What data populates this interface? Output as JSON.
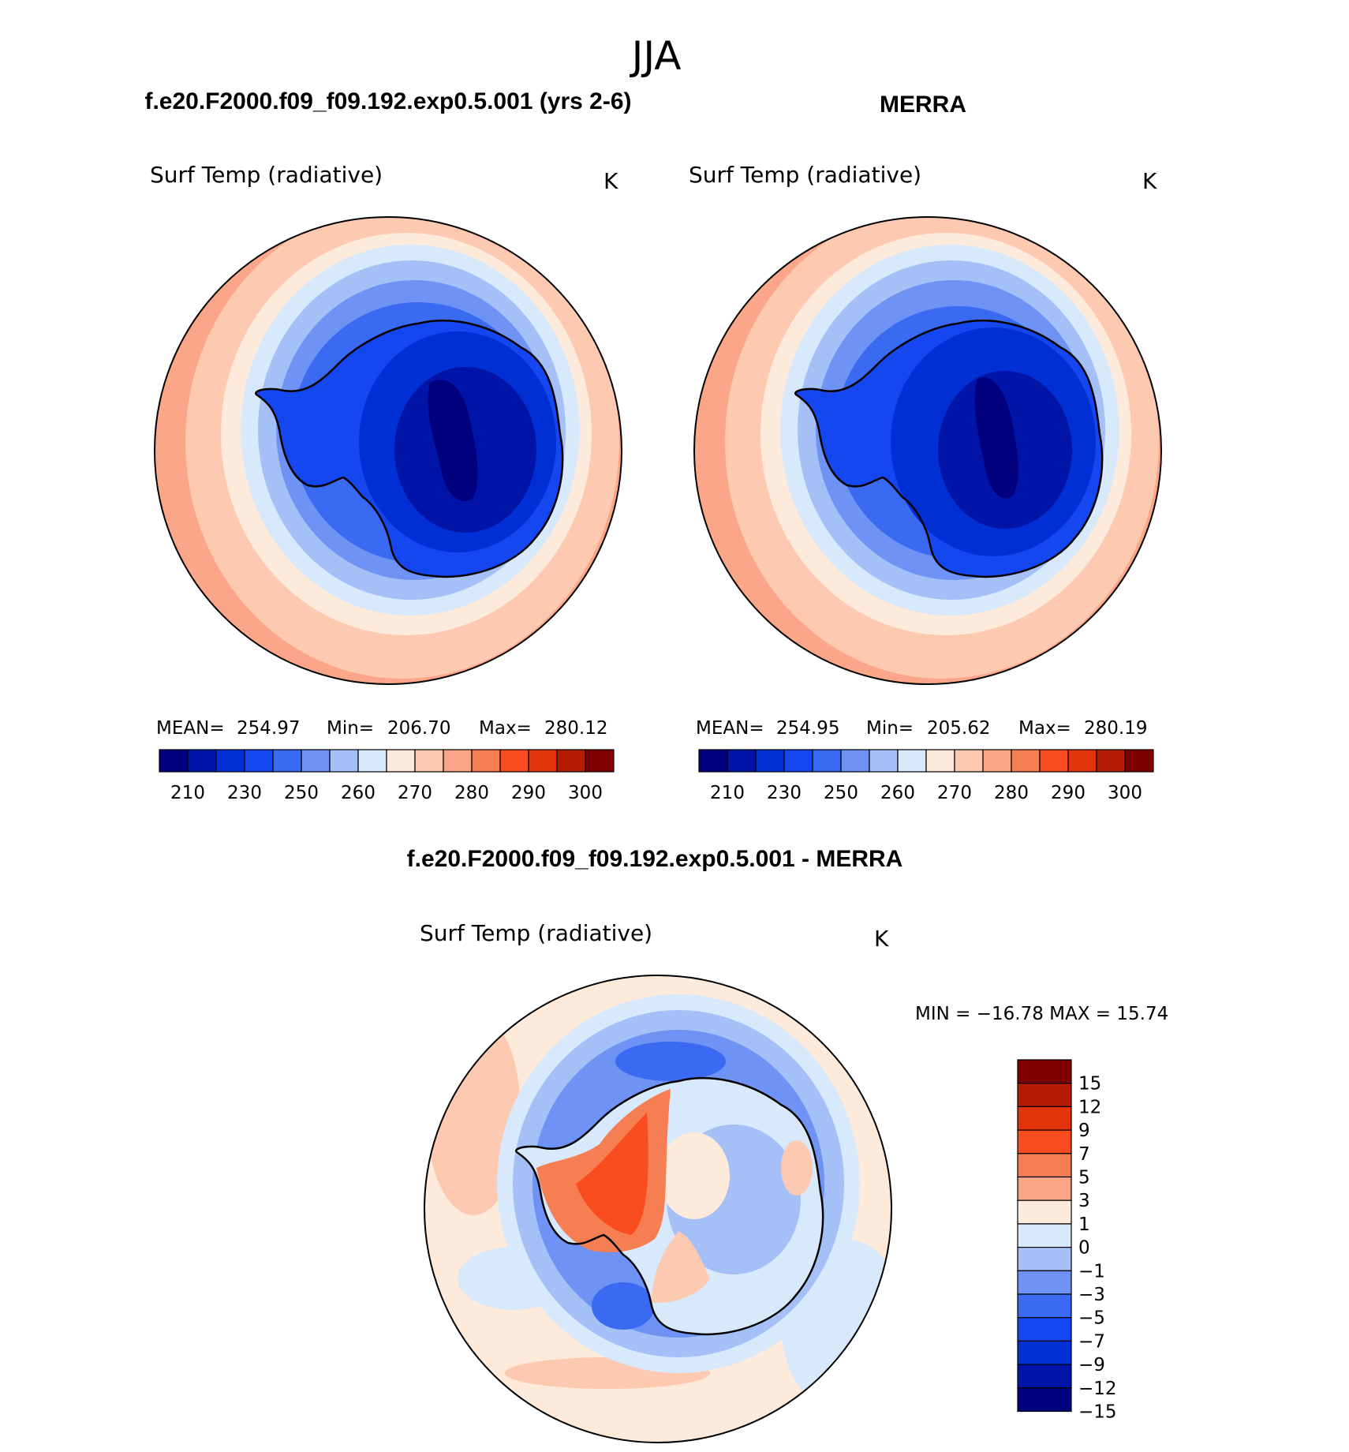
{
  "title": "JJA",
  "panels": [
    {
      "case_title": "f.e20.F2000.f09_f09.192.exp0.5.001 (yrs 2-6)",
      "variable": "Surf Temp (radiative)",
      "units": "K",
      "stats": {
        "mean_label": "MEAN=",
        "mean": "254.97",
        "min_label": "Min=",
        "min": "206.70",
        "max_label": "Max=",
        "max": "280.12"
      }
    },
    {
      "case_title": "MERRA",
      "variable": "Surf Temp (radiative)",
      "units": "K",
      "stats": {
        "mean_label": "MEAN=",
        "mean": "254.95",
        "min_label": "Min=",
        "min": "205.62",
        "max_label": "Max=",
        "max": "280.19"
      }
    }
  ],
  "abs_colorbar": {
    "colors": [
      "#00007f",
      "#0014a7",
      "#0030d4",
      "#1447f0",
      "#3a6af2",
      "#6f93f5",
      "#a4c0f7",
      "#d7e9fb",
      "#feeadb",
      "#fdc9b1",
      "#fba688",
      "#f57e53",
      "#fb4c1f",
      "#e3330a",
      "#b51d04",
      "#7f0000"
    ],
    "labels": [
      "210",
      "230",
      "250",
      "260",
      "270",
      "280",
      "290",
      "300"
    ]
  },
  "diff": {
    "title": "f.e20.F2000.f09_f09.192.exp0.5.001 - MERRA",
    "variable": "Surf Temp (radiative)",
    "units": "K",
    "minmax": "MIN = −16.78 MAX =   15.74",
    "colorbar": {
      "colors_top_to_bottom": [
        "#7f0000",
        "#b51d04",
        "#e3330a",
        "#fb4c1f",
        "#f57e53",
        "#fba688",
        "#feeadb",
        "#d7e9fb",
        "#a4c0f7",
        "#6f93f5",
        "#3a6af2",
        "#1447f0",
        "#0030d4",
        "#0014a7",
        "#00007f"
      ],
      "labels_top_to_bottom": [
        "15",
        "12",
        "9",
        "7",
        "5",
        "3",
        "1",
        "0",
        "−1",
        "−3",
        "−5",
        "−7",
        "−9",
        "−12",
        "−15"
      ]
    }
  }
}
